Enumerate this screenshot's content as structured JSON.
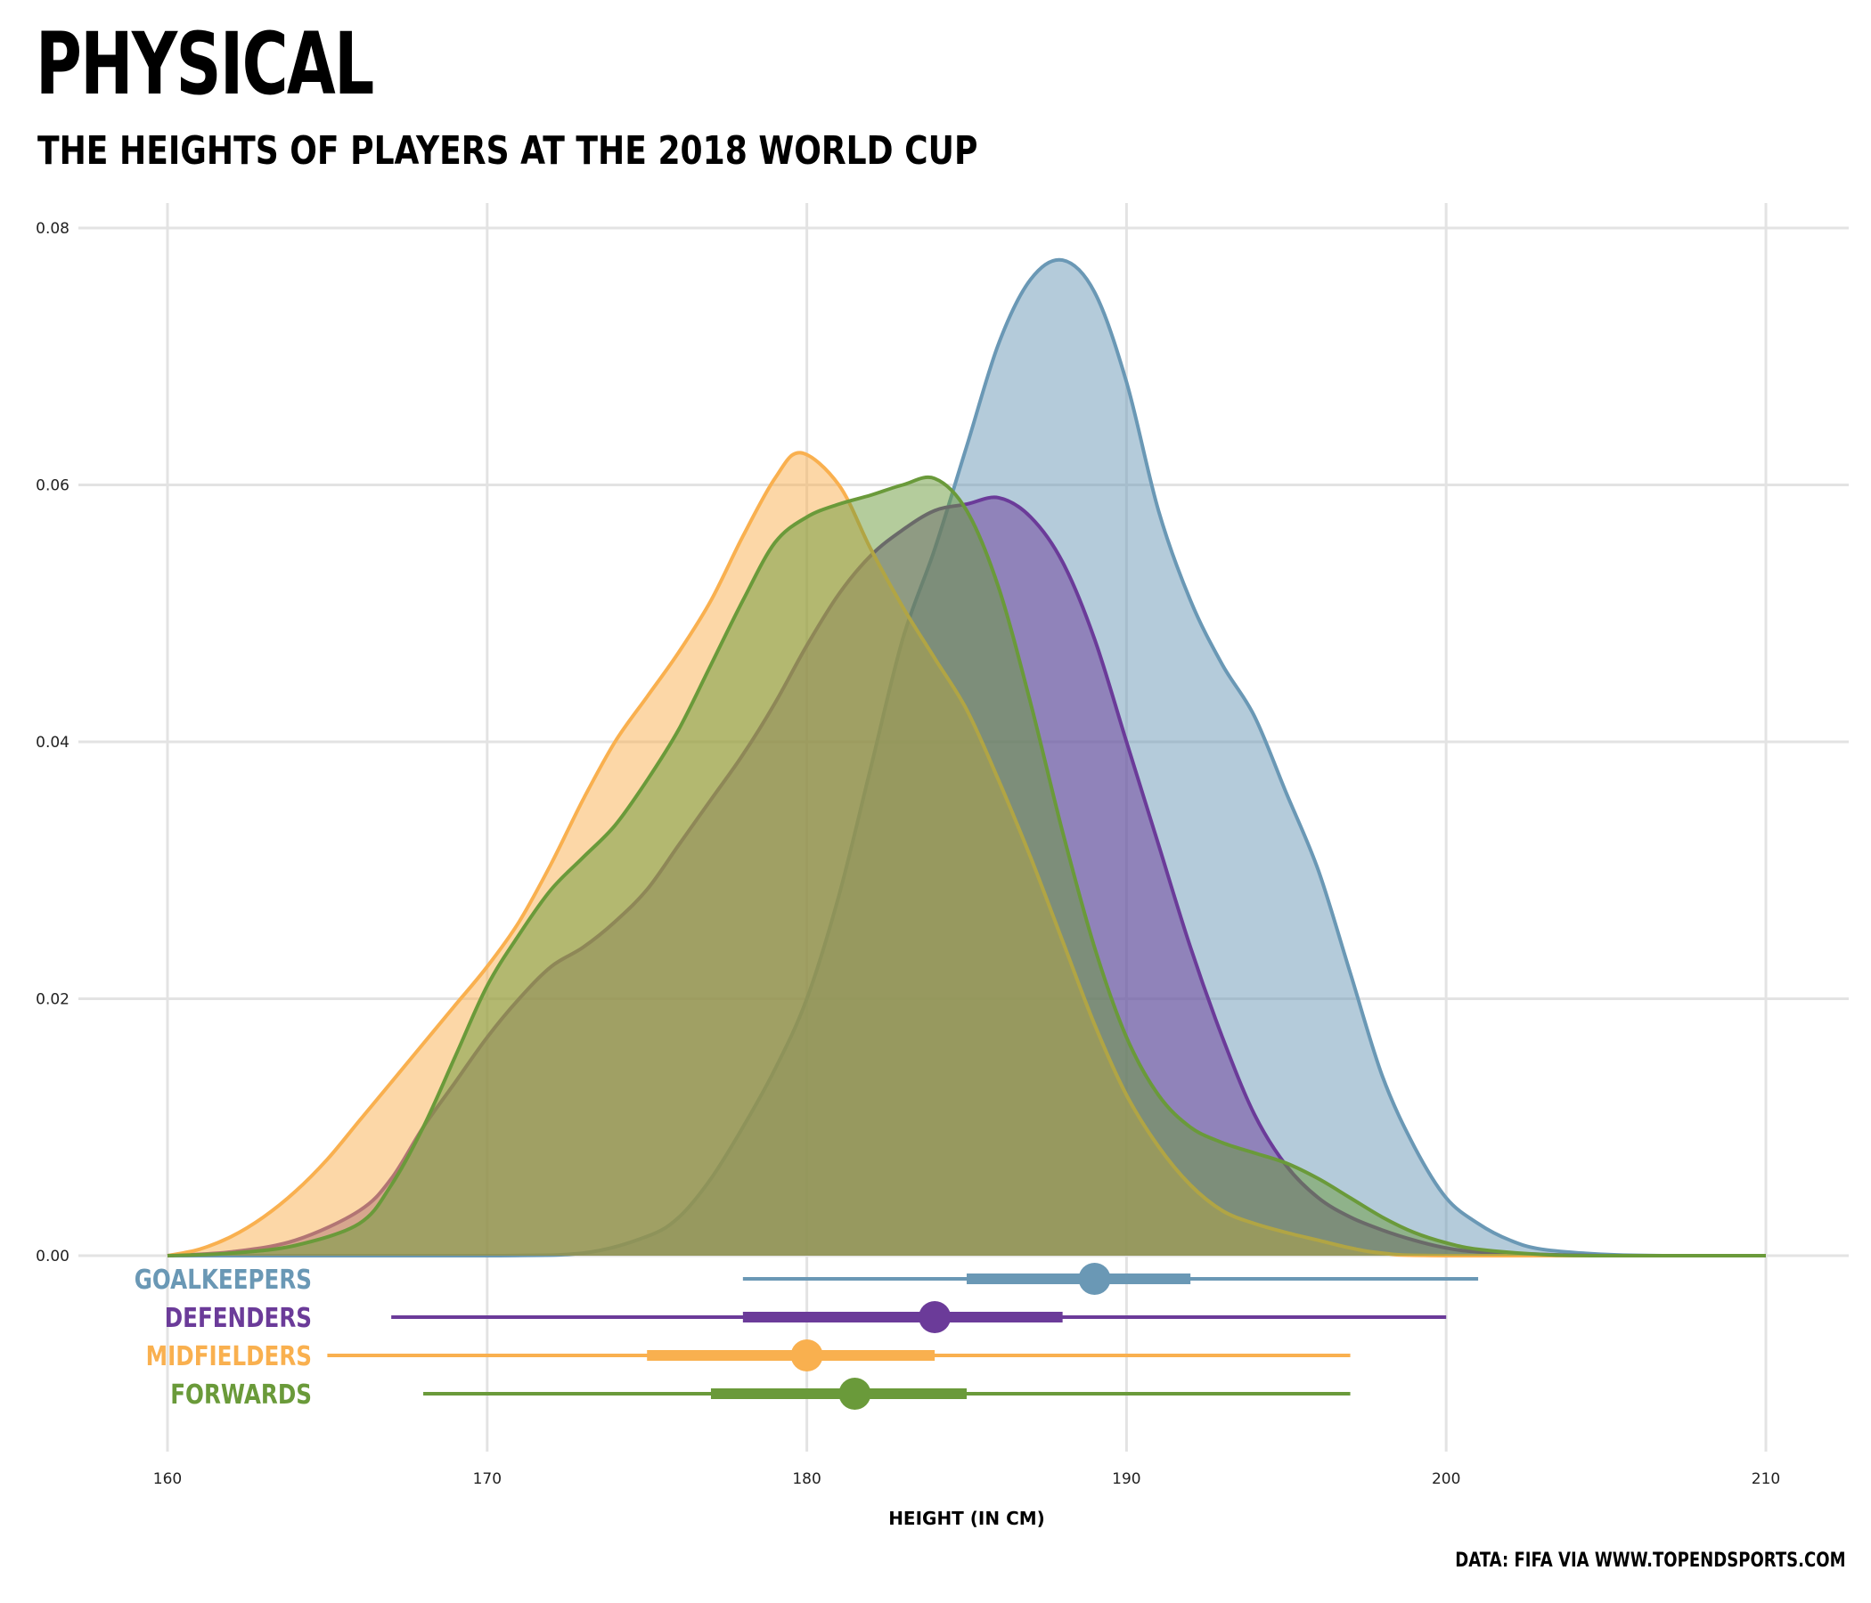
{
  "title": "PHYSICAL",
  "subtitle": "THE HEIGHTS OF PLAYERS AT THE 2018 WORLD CUP",
  "caption": "DATA: FIFA VIA WWW.TOPENDSPORTS.COM",
  "chart_data": {
    "type": "area",
    "xlabel": "HEIGHT (IN CM)",
    "ylabel": "",
    "xlim": [
      160,
      210
    ],
    "ylim": [
      0,
      0.08
    ],
    "x_ticks": [
      "160",
      "170",
      "180",
      "190",
      "200",
      "210"
    ],
    "y_ticks": [
      "0.00",
      "0.02",
      "0.04",
      "0.06",
      "0.08"
    ],
    "grid": true,
    "legend": "left-below-axis",
    "series": [
      {
        "name": "GOALKEEPERS",
        "color": "#6a98b5",
        "density": [
          [
            160,
            0
          ],
          [
            170,
            0
          ],
          [
            173,
            0.0002
          ],
          [
            175,
            0.0015
          ],
          [
            176,
            0.003
          ],
          [
            177,
            0.006
          ],
          [
            178,
            0.01
          ],
          [
            179,
            0.0145
          ],
          [
            180,
            0.02
          ],
          [
            181,
            0.028
          ],
          [
            182,
            0.038
          ],
          [
            183,
            0.048
          ],
          [
            184,
            0.055
          ],
          [
            185,
            0.063
          ],
          [
            186,
            0.071
          ],
          [
            187,
            0.076
          ],
          [
            188,
            0.0775
          ],
          [
            189,
            0.075
          ],
          [
            190,
            0.068
          ],
          [
            191,
            0.058
          ],
          [
            192,
            0.051
          ],
          [
            193,
            0.046
          ],
          [
            194,
            0.042
          ],
          [
            195,
            0.036
          ],
          [
            196,
            0.03
          ],
          [
            197,
            0.022
          ],
          [
            198,
            0.014
          ],
          [
            199,
            0.0085
          ],
          [
            200,
            0.0045
          ],
          [
            201,
            0.0025
          ],
          [
            202,
            0.0012
          ],
          [
            203,
            0.0005
          ],
          [
            205,
            0.0001
          ],
          [
            207,
            0
          ],
          [
            210,
            0
          ]
        ],
        "summary": {
          "median": 189,
          "q1": 185,
          "q3": 192,
          "min": 178,
          "max": 201
        }
      },
      {
        "name": "DEFENDERS",
        "color": "#6b3b99",
        "density": [
          [
            160,
            0
          ],
          [
            162,
            0.0003
          ],
          [
            164,
            0.0012
          ],
          [
            166,
            0.0035
          ],
          [
            167,
            0.006
          ],
          [
            168,
            0.01
          ],
          [
            169,
            0.0135
          ],
          [
            170,
            0.017
          ],
          [
            171,
            0.02
          ],
          [
            172,
            0.0225
          ],
          [
            173,
            0.024
          ],
          [
            174,
            0.026
          ],
          [
            175,
            0.0285
          ],
          [
            176,
            0.032
          ],
          [
            177,
            0.0355
          ],
          [
            178,
            0.039
          ],
          [
            179,
            0.043
          ],
          [
            180,
            0.0475
          ],
          [
            181,
            0.0515
          ],
          [
            182,
            0.0545
          ],
          [
            183,
            0.0565
          ],
          [
            184,
            0.058
          ],
          [
            185,
            0.0585
          ],
          [
            186,
            0.059
          ],
          [
            187,
            0.0575
          ],
          [
            188,
            0.054
          ],
          [
            189,
            0.048
          ],
          [
            190,
            0.04
          ],
          [
            191,
            0.032
          ],
          [
            192,
            0.024
          ],
          [
            193,
            0.017
          ],
          [
            194,
            0.011
          ],
          [
            195,
            0.007
          ],
          [
            196,
            0.0045
          ],
          [
            197,
            0.003
          ],
          [
            198,
            0.002
          ],
          [
            199,
            0.0012
          ],
          [
            200,
            0.0006
          ],
          [
            201,
            0.0003
          ],
          [
            203,
            0.0001
          ],
          [
            205,
            0
          ],
          [
            210,
            0
          ]
        ],
        "summary": {
          "median": 184,
          "q1": 178,
          "q3": 188,
          "min": 167,
          "max": 200
        }
      },
      {
        "name": "MIDFIELDERS",
        "color": "#f9b04f",
        "density": [
          [
            160,
            0
          ],
          [
            161,
            0.0005
          ],
          [
            162,
            0.0015
          ],
          [
            163,
            0.003
          ],
          [
            164,
            0.005
          ],
          [
            165,
            0.0075
          ],
          [
            166,
            0.0105
          ],
          [
            167,
            0.0135
          ],
          [
            168,
            0.0165
          ],
          [
            169,
            0.0195
          ],
          [
            170,
            0.0225
          ],
          [
            171,
            0.026
          ],
          [
            172,
            0.0305
          ],
          [
            173,
            0.0355
          ],
          [
            174,
            0.04
          ],
          [
            175,
            0.0435
          ],
          [
            176,
            0.047
          ],
          [
            177,
            0.051
          ],
          [
            178,
            0.056
          ],
          [
            179,
            0.0605
          ],
          [
            179.8,
            0.0625
          ],
          [
            181,
            0.06
          ],
          [
            182,
            0.055
          ],
          [
            183,
            0.0505
          ],
          [
            184,
            0.0465
          ],
          [
            185,
            0.0425
          ],
          [
            186,
            0.037
          ],
          [
            187,
            0.031
          ],
          [
            188,
            0.0245
          ],
          [
            189,
            0.018
          ],
          [
            190,
            0.0125
          ],
          [
            191,
            0.0085
          ],
          [
            192,
            0.0055
          ],
          [
            193,
            0.0035
          ],
          [
            194,
            0.0025
          ],
          [
            195,
            0.0018
          ],
          [
            196,
            0.0012
          ],
          [
            197,
            0.0006
          ],
          [
            198,
            0.0002
          ],
          [
            200,
            0
          ],
          [
            210,
            0
          ]
        ],
        "summary": {
          "median": 180,
          "q1": 175,
          "q3": 184,
          "min": 165,
          "max": 197
        }
      },
      {
        "name": "FORWARDS",
        "color": "#6a9a3a",
        "density": [
          [
            160,
            0
          ],
          [
            162,
            0.0002
          ],
          [
            164,
            0.0008
          ],
          [
            166,
            0.0025
          ],
          [
            167,
            0.0055
          ],
          [
            168,
            0.01
          ],
          [
            169,
            0.0155
          ],
          [
            170,
            0.021
          ],
          [
            171,
            0.025
          ],
          [
            172,
            0.0285
          ],
          [
            173,
            0.031
          ],
          [
            174,
            0.0335
          ],
          [
            175,
            0.037
          ],
          [
            176,
            0.041
          ],
          [
            177,
            0.046
          ],
          [
            178,
            0.051
          ],
          [
            179,
            0.0555
          ],
          [
            180,
            0.0575
          ],
          [
            181,
            0.0585
          ],
          [
            182,
            0.0592
          ],
          [
            183,
            0.06
          ],
          [
            184,
            0.0605
          ],
          [
            185,
            0.058
          ],
          [
            186,
            0.052
          ],
          [
            187,
            0.043
          ],
          [
            188,
            0.033
          ],
          [
            189,
            0.024
          ],
          [
            190,
            0.017
          ],
          [
            191,
            0.0125
          ],
          [
            192,
            0.01
          ],
          [
            193,
            0.0088
          ],
          [
            194,
            0.008
          ],
          [
            195,
            0.0072
          ],
          [
            196,
            0.006
          ],
          [
            197,
            0.0045
          ],
          [
            198,
            0.003
          ],
          [
            199,
            0.0018
          ],
          [
            200,
            0.001
          ],
          [
            201,
            0.0005
          ],
          [
            203,
            0.0001
          ],
          [
            205,
            0
          ],
          [
            210,
            0
          ]
        ],
        "summary": {
          "median": 181.5,
          "q1": 177,
          "q3": 185,
          "min": 168,
          "max": 197
        }
      }
    ]
  }
}
